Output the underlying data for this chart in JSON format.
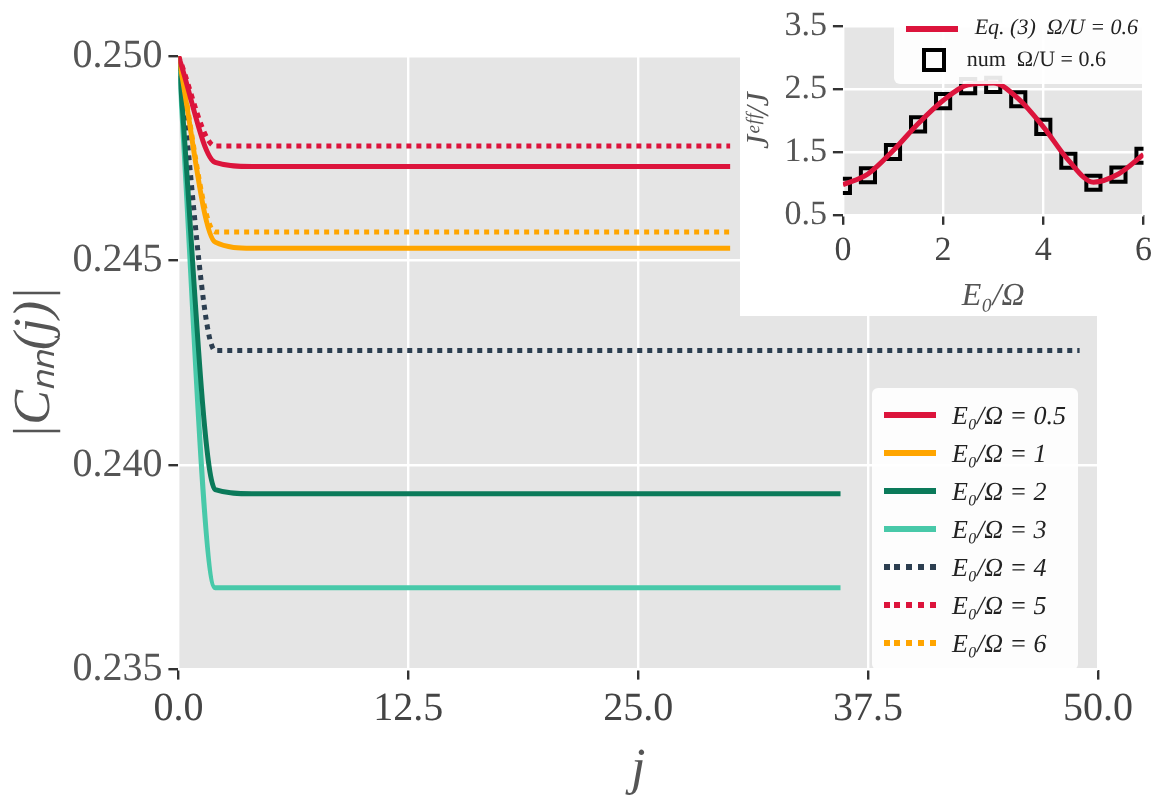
{
  "chart_data": [
    {
      "type": "line",
      "xlabel": "j",
      "ylabel": "|Cₙₙ(j)|",
      "x": [
        0,
        2,
        4,
        30,
        36,
        49
      ],
      "xlim": [
        0,
        50
      ],
      "xticks": [
        {
          "value": 0,
          "label": "0.0"
        },
        12.5,
        {
          "value": 25,
          "label": "25.0"
        },
        37.5,
        {
          "value": 50,
          "label": "50.0"
        }
      ],
      "ylim": [
        0.235,
        0.25
      ],
      "yticks": [
        {
          "value": 0.235,
          "label": "0.235"
        },
        {
          "value": 0.24,
          "label": "0.240"
        },
        {
          "value": 0.245,
          "label": "0.245"
        },
        {
          "value": 0.25,
          "label": "0.250"
        }
      ],
      "grid": true,
      "legend": "bottom right",
      "marker": "none",
      "series": [
        {
          "name": "E₀/Ω = 0.5",
          "color": "#dc143c",
          "line_style": "solid",
          "values": [
            0.25,
            0.2474,
            0.2473,
            0.2473,
            null,
            null
          ]
        },
        {
          "name": "E₀/Ω = 1",
          "color": "#ffa500",
          "line_style": "solid",
          "values": [
            0.25,
            0.24545,
            0.2453,
            0.2453,
            null,
            null
          ]
        },
        {
          "name": "E₀/Ω = 2",
          "color": "#0b7a5a",
          "line_style": "solid",
          "values": [
            0.25,
            0.2394,
            0.2393,
            0.2393,
            0.2393,
            null
          ]
        },
        {
          "name": "E₀/Ω = 3",
          "color": "#48c9a9",
          "line_style": "solid",
          "values": [
            0.25,
            0.237,
            0.237,
            0.237,
            0.237,
            null
          ]
        },
        {
          "name": "E₀/Ω = 4",
          "color": "#2c3e50",
          "line_style": "dotted",
          "values": [
            0.25,
            0.2428,
            0.2428,
            0.2428,
            0.2428,
            0.2428
          ]
        },
        {
          "name": "E₀/Ω = 5",
          "color": "#dc143c",
          "line_style": "dotted",
          "values": [
            0.25,
            0.2478,
            0.2478,
            0.2478,
            null,
            null
          ]
        },
        {
          "name": "E₀/Ω = 6",
          "color": "#ffa500",
          "line_style": "dotted",
          "values": [
            0.25,
            0.2457,
            0.2457,
            0.2457,
            null,
            null
          ]
        }
      ]
    },
    {
      "type": "line",
      "xlabel": "E₀/Ω",
      "ylabel": "Jᵉᶠᶠ/J",
      "x": [
        0,
        0.5,
        1,
        1.5,
        2,
        2.5,
        3,
        3.5,
        4,
        4.5,
        5,
        5.5,
        6
      ],
      "xlim": [
        0,
        6
      ],
      "xticks": [
        0,
        2,
        4,
        6
      ],
      "ylim": [
        0.5,
        3.5
      ],
      "yticks": [
        0.5,
        1.5,
        2.5,
        3.5
      ],
      "grid": true,
      "legend": "top right",
      "series": [
        {
          "name": "Eq. (3)  Ω/U = 0.6",
          "color": "#dc143c",
          "line_style": "solid",
          "marker": "none",
          "values": [
            0.98,
            1.15,
            1.52,
            1.95,
            2.32,
            2.57,
            2.6,
            2.35,
            1.9,
            1.37,
            1.02,
            1.15,
            1.46
          ]
        },
        {
          "name": "num  Ω/U = 0.6",
          "type": "scatter",
          "color": "#000000",
          "marker": "square",
          "values": [
            0.96,
            1.13,
            1.5,
            1.94,
            2.31,
            2.55,
            2.57,
            2.34,
            1.9,
            1.36,
            1.01,
            1.14,
            1.44
          ]
        }
      ]
    }
  ]
}
